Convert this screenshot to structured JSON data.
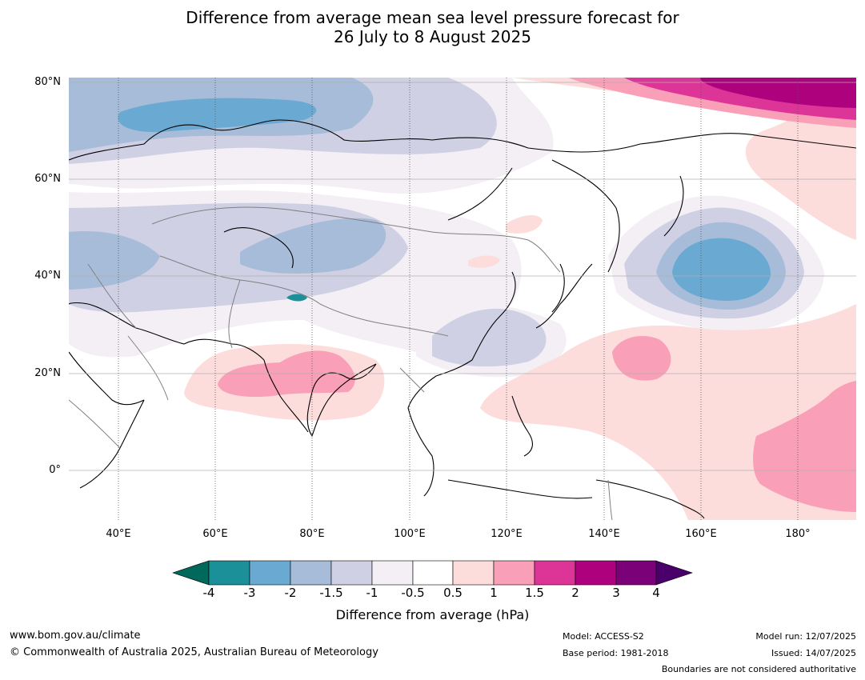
{
  "header": {
    "title_line1": "Difference from average mean sea level pressure forecast for",
    "title_line2": "26 July to 8 August 2025"
  },
  "map": {
    "lat_labels": [
      "80°N",
      "60°N",
      "40°N",
      "20°N",
      "0°"
    ],
    "lon_labels": [
      "40°E",
      "60°E",
      "80°E",
      "100°E",
      "120°E",
      "140°E",
      "160°E",
      "180°"
    ],
    "lat_range": [
      -10,
      81
    ],
    "lon_range": [
      30,
      192
    ],
    "colors": {
      "neg4": "#00695c",
      "neg3": "#1b9099",
      "neg2": "#6aaad2",
      "neg15": "#a6bcd9",
      "neg1": "#cfd0e4",
      "neg05": "#f3eff5",
      "zero": "#ffffff",
      "pos05": "#fddcdc",
      "pos1": "#f99fb8",
      "pos15": "#dd3597",
      "pos2": "#ae017e",
      "pos3": "#7a0177",
      "pos4": "#4a006a"
    }
  },
  "colorbar": {
    "ticks": [
      "-4",
      "-3",
      "-2",
      "-1.5",
      "-1",
      "-0.5",
      "0.5",
      "1",
      "1.5",
      "2",
      "3",
      "4"
    ],
    "label": "Difference from average (hPa)"
  },
  "footer": {
    "url": "www.bom.gov.au/climate",
    "copyright": "© Commonwealth of Australia 2025, Australian Bureau of Meteorology",
    "model": "Model: ACCESS-S2",
    "base_period": "Base period: 1981-2018",
    "model_run": "Model run: 12/07/2025",
    "issued": "Issued: 14/07/2025",
    "disclaimer": "Boundaries are not considered authoritative"
  }
}
